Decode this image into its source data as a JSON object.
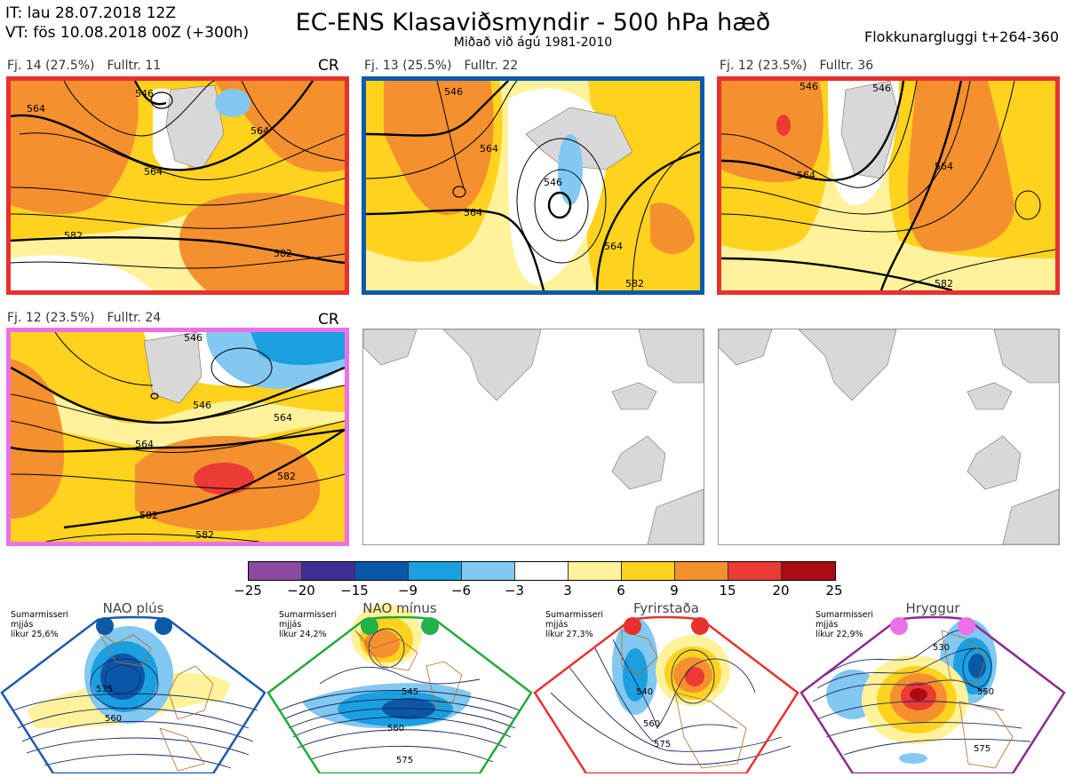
{
  "header": {
    "it": "IT: lau 28.07.2018 12Z",
    "vt": "VT: fös 10.08.2018 00Z  (+300h)",
    "title": "EC-ENS Klasaviðsmyndir - 500 hPa hæð",
    "subtitle": "Miðað við ágú 1981-2010",
    "window": "Flokkunargluggi t+264-360"
  },
  "clusters": [
    {
      "fj": "Fj. 14 (27.5%)",
      "fulltr": "Fulltr. 11",
      "extra": "CR",
      "border": "#e8302f",
      "contours": [
        "546",
        "564",
        "582",
        "564",
        "582",
        "564"
      ]
    },
    {
      "fj": "Fj. 13 (25.5%)",
      "fulltr": "Fulltr. 22",
      "extra": "",
      "border": "#0a5aa8",
      "contours": [
        "546",
        "564",
        "564",
        "546",
        "564",
        "582"
      ]
    },
    {
      "fj": "Fj. 12 (23.5%)",
      "fulltr": "Fulltr. 36",
      "extra": "",
      "border": "#e8302f",
      "contours": [
        "546",
        "546",
        "564",
        "564",
        "582"
      ]
    },
    {
      "fj": "Fj. 12 (23.5%)",
      "fulltr": "Fulltr. 24",
      "extra": "CR",
      "border": "#ee70e8",
      "contours": [
        "546",
        "546",
        "564",
        "564",
        "582",
        "582",
        "582"
      ]
    }
  ],
  "colorbar": {
    "colors": [
      "#8b4aa0",
      "#3d2e94",
      "#0a57a8",
      "#1aa0e0",
      "#82c8f0",
      "#ffffff",
      "#fff29a",
      "#ffd21e",
      "#f5902e",
      "#ec3a35",
      "#aa0c12"
    ],
    "ticks": [
      "−25",
      "−20",
      "−15",
      "−9",
      "−6",
      "−3",
      "3",
      "6",
      "9",
      "15",
      "20",
      "25"
    ]
  },
  "regimes": [
    {
      "name": "NAO plús",
      "info": [
        "Sumarmisseri",
        "mjjás",
        "líkur 25,6%"
      ],
      "border": "#1d5aa8",
      "dot": "#0a5aa8",
      "labels": [
        "535",
        "560"
      ]
    },
    {
      "name": "NAO mínus",
      "info": [
        "Sumarmisseri",
        "mjjás",
        "líkur 24,2%"
      ],
      "border": "#22a83a",
      "dot": "#22b04a",
      "labels": [
        "545",
        "560",
        "575"
      ]
    },
    {
      "name": "Fyrirstaða",
      "info": [
        "Sumarmisseri",
        "mjjás",
        "líkur 27,3%"
      ],
      "border": "#e8302f",
      "dot": "#e8302f",
      "labels": [
        "540",
        "560",
        "575"
      ]
    },
    {
      "name": "Hryggur",
      "info": [
        "Sumarmisseri",
        "mjjás",
        "líkur 22,9%"
      ],
      "border": "#8a2a90",
      "dot": "#ee70e8",
      "labels": [
        "530",
        "550",
        "575"
      ]
    }
  ]
}
